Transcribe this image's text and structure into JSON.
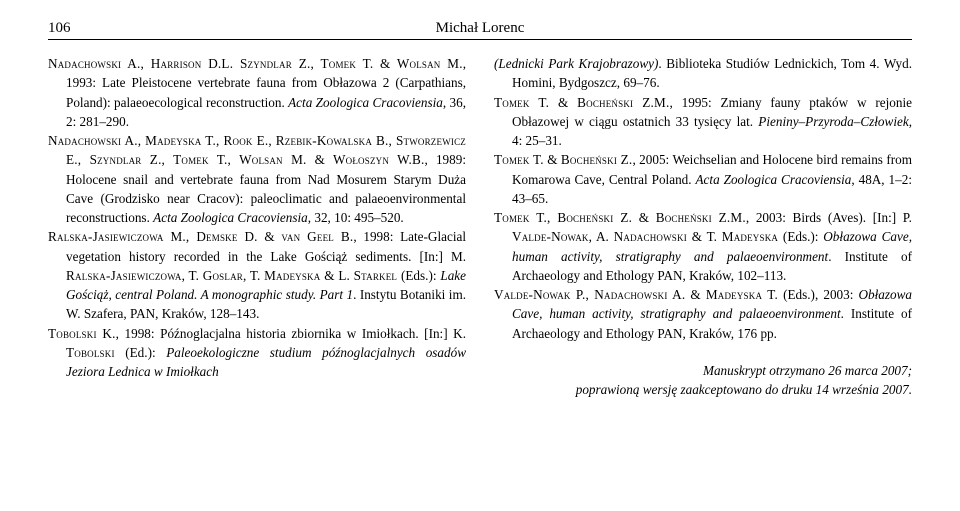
{
  "header": {
    "page_number": "106",
    "author": "Michał Lorenc"
  },
  "left_column": [
    {
      "html": "<span class='sc'>Nadachowski A., Harrison D.L. Szyndlar Z., Tomek T.</span> &amp; <span class='sc'>Wolsan M.</span>, 1993: Late Pleistocene vertebrate fauna from Obłazowa 2 (Carpathians, Poland): palaeoecological reconstruction. <span class='it'>Acta Zoologica Cracoviensia</span>, 36, 2: 281–290."
    },
    {
      "html": "<span class='sc'>Nadachowski A., Madeyska T., Rook E., Rzebik-Kowalska B., Stworzewicz E., Szyndlar Z., Tomek T., Wolsan M.</span> &amp; <span class='sc'>Wołoszyn W.B.</span>, 1989: Holocene snail and vertebrate fauna from Nad Mosurem Starym Duża Cave (Grodzisko near Cracov): paleoclimatic and palaeoenvironmental reconstructions. <span class='it'>Acta Zoologica Cracoviensia</span>, 32, 10: 495–520."
    },
    {
      "html": "<span class='sc'>Ralska-Jasiewiczowa M., Demske D.</span> &amp; <span class='sc'>van Geel B.</span>, 1998: Late-Glacial vegetation history recorded in the Lake Gościąż sediments. [In:] M. <span class='sc'>Ralska-Jasiewiczowa</span>, T. <span class='sc'>Goslar</span>, T. <span class='sc'>Madeyska</span> &amp; L. <span class='sc'>Starkel</span> (Eds.): <span class='it'>Lake Gościąż, central Poland. A monographic study. Part 1</span>. Instytu Botaniki im. W. Szafera, PAN, Kraków, 128–143."
    },
    {
      "html": "<span class='sc'>Tobolski K.</span>, 1998: Późnoglacjalna historia zbiornika w Imiołkach. [In:] K. <span class='sc'>Tobolski</span> (Ed.): <span class='it'>Paleoekologiczne studium późnoglacjalnych osadów Jeziora Lednica w Imiołkach</span>"
    }
  ],
  "right_column": [
    {
      "html": "<span class='it'>(Lednicki Park Krajobrazowy)</span>. Biblioteka Studiów Lednickich, Tom 4. Wyd. Homini, Bydgoszcz, 69–76."
    },
    {
      "html": "<span class='sc'>Tomek T.</span> &amp; <span class='sc'>Bocheński Z.M.</span>, 1995: Zmiany fauny ptaków w rejonie Obłazowej w ciągu ostatnich 33 tysięcy lat. <span class='it'>Pieniny–Przyroda–Człowiek</span>, 4: 25–31."
    },
    {
      "html": "<span class='sc'>Tomek T.</span> &amp; <span class='sc'>Bocheński Z.</span>, 2005: Weichselian and Holocene bird remains from Komarowa Cave, Central Poland. <span class='it'>Acta Zoologica Cracoviensia</span>, 48A, 1–2: 43–65."
    },
    {
      "html": "<span class='sc'>Tomek T., Bocheński Z.</span> &amp; <span class='sc'>Bocheński Z.M.</span>, 2003: Birds (Aves). [In:] P. <span class='sc'>Valde-Nowak</span>, A. <span class='sc'>Nadachowski</span> &amp; T. <span class='sc'>Madeyska</span> (Eds.): <span class='it'>Obłazowa Cave, human activity, stratigraphy and palaeoenvironment</span>. Institute of Archaeology and Ethology PAN, Kraków, 102–113."
    },
    {
      "html": "<span class='sc'>Valde-Nowak P., Nadachowski A.</span> &amp; <span class='sc'>Madeyska T.</span> (Eds.), 2003: <span class='it'>Obłazowa Cave, human activity, stratigraphy and palaeoenvironment</span>. Institute of Archaeology and Ethology PAN, Kraków, 176 pp."
    }
  ],
  "manuscript": {
    "line1": "Manuskrypt otrzymano 26 marca 2007;",
    "line2": "poprawioną wersję zaakceptowano do druku 14 września 2007."
  }
}
